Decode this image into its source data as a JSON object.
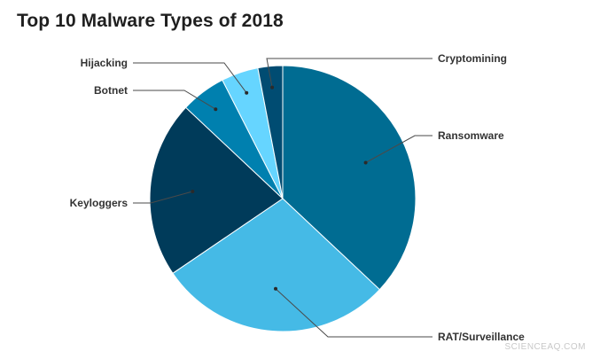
{
  "chart_data": {
    "type": "pie",
    "title": "Top 10 Malware Types of 2018",
    "start_angle_deg": 0,
    "direction": "clockwise",
    "slices": [
      {
        "label": "Ransomware",
        "value": 37.0,
        "color": "#006C92"
      },
      {
        "label": "RAT/Surveillance",
        "value": 28.5,
        "color": "#45BAE6"
      },
      {
        "label": "Keyloggers",
        "value": 21.5,
        "color": "#003B5A"
      },
      {
        "label": "Botnet",
        "value": 5.5,
        "color": "#0080AF"
      },
      {
        "label": "Hijacking",
        "value": 4.5,
        "color": "#66D5FF"
      },
      {
        "label": "Cryptomining",
        "value": 3.0,
        "color": "#004C72"
      }
    ]
  },
  "watermark": "SCIENCEAQ.COM"
}
